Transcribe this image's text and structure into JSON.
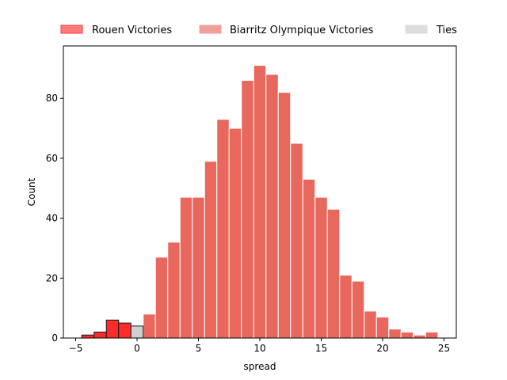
{
  "chart_data": {
    "type": "bar",
    "title": "",
    "xlabel": "spread",
    "ylabel": "Count",
    "xlim": [
      -6,
      26
    ],
    "ylim": [
      0,
      97.5
    ],
    "xticks": [
      -5,
      0,
      5,
      10,
      15,
      20,
      25
    ],
    "yticks": [
      0,
      20,
      40,
      60,
      80
    ],
    "bin_width": 1,
    "grid": false,
    "legend_position": "top, above plot, horizontal",
    "series": [
      {
        "name": "Rouen Victories",
        "color": "#ff2a2a",
        "bins": [
          {
            "start": -4.5,
            "end": -3.5,
            "count": 1
          },
          {
            "start": -3.5,
            "end": -2.5,
            "count": 2
          },
          {
            "start": -2.5,
            "end": -1.5,
            "count": 6
          },
          {
            "start": -1.5,
            "end": -0.5,
            "count": 5
          }
        ]
      },
      {
        "name": "Biarritz Olympique Victories",
        "color": "#e8685d",
        "bins": [
          {
            "start": 0.5,
            "end": 1.5,
            "count": 8
          },
          {
            "start": 1.5,
            "end": 2.5,
            "count": 27
          },
          {
            "start": 2.5,
            "end": 3.5,
            "count": 32
          },
          {
            "start": 3.5,
            "end": 4.5,
            "count": 47
          },
          {
            "start": 4.5,
            "end": 5.5,
            "count": 47
          },
          {
            "start": 5.5,
            "end": 6.5,
            "count": 59
          },
          {
            "start": 6.5,
            "end": 7.5,
            "count": 73
          },
          {
            "start": 7.5,
            "end": 8.5,
            "count": 70
          },
          {
            "start": 8.5,
            "end": 9.5,
            "count": 86
          },
          {
            "start": 9.5,
            "end": 10.5,
            "count": 91
          },
          {
            "start": 10.5,
            "end": 11.5,
            "count": 88
          },
          {
            "start": 11.5,
            "end": 12.5,
            "count": 82
          },
          {
            "start": 12.5,
            "end": 13.5,
            "count": 65
          },
          {
            "start": 13.5,
            "end": 14.5,
            "count": 53
          },
          {
            "start": 14.5,
            "end": 15.5,
            "count": 47
          },
          {
            "start": 15.5,
            "end": 16.5,
            "count": 43
          },
          {
            "start": 16.5,
            "end": 17.5,
            "count": 21
          },
          {
            "start": 17.5,
            "end": 18.5,
            "count": 19
          },
          {
            "start": 18.5,
            "end": 19.5,
            "count": 9
          },
          {
            "start": 19.5,
            "end": 20.5,
            "count": 7
          },
          {
            "start": 20.5,
            "end": 21.5,
            "count": 3
          },
          {
            "start": 21.5,
            "end": 22.5,
            "count": 2
          },
          {
            "start": 22.5,
            "end": 23.5,
            "count": 1
          },
          {
            "start": 23.5,
            "end": 24.5,
            "count": 2
          }
        ]
      },
      {
        "name": "Ties",
        "color": "#d0d0d0",
        "bins": [
          {
            "start": -0.5,
            "end": 0.5,
            "count": 4
          }
        ]
      }
    ],
    "legend": [
      {
        "label": "Rouen Victories",
        "swatch_color": "#ff7a7a",
        "swatch_edge": "#ff3a3a"
      },
      {
        "label": "Biarritz Olympique Victories",
        "swatch_color": "#f0a098",
        "swatch_edge": "#f0a098"
      },
      {
        "label": "Ties",
        "swatch_color": "#dddddd",
        "swatch_edge": "#dddddd"
      }
    ]
  }
}
